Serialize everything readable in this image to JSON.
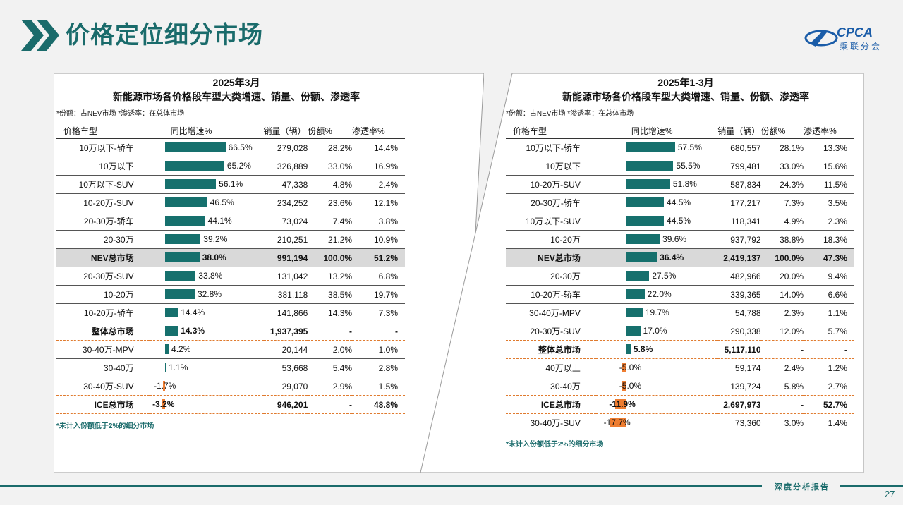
{
  "header": {
    "title": "价格定位细分市场",
    "logo_text": "CPCA",
    "logo_sub": "乘联分会"
  },
  "colors": {
    "accent": "#1a6b6b",
    "bar_positive": "#16706d",
    "bar_negative": "#ee7d31"
  },
  "columns": {
    "name": "价格车型",
    "growth": "同比增速%",
    "sales": "销量（辆）",
    "share": "份额%",
    "penetration": "渗透率%"
  },
  "footer": {
    "brand": "深度分析报告",
    "page": "27"
  },
  "chart_data": [
    {
      "type": "bar",
      "title": "2025年3月",
      "subtitle": "新能源市场各价格段车型大类增速、销量、份额、渗透率",
      "note": "*份额：占NEV市场   *渗透率：在总体市场",
      "footnote": "*未计入份额低于2%的细分市场",
      "max_abs": 66.5,
      "rows": [
        {
          "name": "10万以下-轿车",
          "growth": 66.5,
          "growth_label": "66.5%",
          "sales": "279,028",
          "share": "28.2%",
          "penetration": "14.4%",
          "kind": "normal"
        },
        {
          "name": "10万以下",
          "growth": 65.2,
          "growth_label": "65.2%",
          "sales": "326,889",
          "share": "33.0%",
          "penetration": "16.9%",
          "kind": "normal"
        },
        {
          "name": "10万以下-SUV",
          "growth": 56.1,
          "growth_label": "56.1%",
          "sales": "47,338",
          "share": "4.8%",
          "penetration": "2.4%",
          "kind": "normal"
        },
        {
          "name": "10-20万-SUV",
          "growth": 46.5,
          "growth_label": "46.5%",
          "sales": "234,252",
          "share": "23.6%",
          "penetration": "12.1%",
          "kind": "normal"
        },
        {
          "name": "20-30万-轿车",
          "growth": 44.1,
          "growth_label": "44.1%",
          "sales": "73,024",
          "share": "7.4%",
          "penetration": "3.8%",
          "kind": "normal"
        },
        {
          "name": "20-30万",
          "growth": 39.2,
          "growth_label": "39.2%",
          "sales": "210,251",
          "share": "21.2%",
          "penetration": "10.9%",
          "kind": "normal"
        },
        {
          "name": "NEV总市场",
          "growth": 38.0,
          "growth_label": "38.0%",
          "sales": "991,194",
          "share": "100.0%",
          "penetration": "51.2%",
          "kind": "highlight"
        },
        {
          "name": "20-30万-SUV",
          "growth": 33.8,
          "growth_label": "33.8%",
          "sales": "131,042",
          "share": "13.2%",
          "penetration": "6.8%",
          "kind": "normal"
        },
        {
          "name": "10-20万",
          "growth": 32.8,
          "growth_label": "32.8%",
          "sales": "381,118",
          "share": "38.5%",
          "penetration": "19.7%",
          "kind": "normal"
        },
        {
          "name": "10-20万-轿车",
          "growth": 14.4,
          "growth_label": "14.4%",
          "sales": "141,866",
          "share": "14.3%",
          "penetration": "7.3%",
          "kind": "dash"
        },
        {
          "name": "整体总市场",
          "growth": 14.3,
          "growth_label": "14.3%",
          "sales": "1,937,395",
          "share": "-",
          "penetration": "-",
          "kind": "total-dash"
        },
        {
          "name": "30-40万-MPV",
          "growth": 4.2,
          "growth_label": "4.2%",
          "sales": "20,144",
          "share": "2.0%",
          "penetration": "1.0%",
          "kind": "normal"
        },
        {
          "name": "30-40万",
          "growth": 1.1,
          "growth_label": "1.1%",
          "sales": "53,668",
          "share": "5.4%",
          "penetration": "2.8%",
          "kind": "normal"
        },
        {
          "name": "30-40万-SUV",
          "growth": -1.7,
          "growth_label": "-1.7%",
          "sales": "29,070",
          "share": "2.9%",
          "penetration": "1.5%",
          "kind": "dash"
        },
        {
          "name": "ICE总市场",
          "growth": -3.2,
          "growth_label": "-3.2%",
          "sales": "946,201",
          "share": "-",
          "penetration": "48.8%",
          "kind": "total-dash"
        }
      ]
    },
    {
      "type": "bar",
      "title": "2025年1-3月",
      "subtitle": "新能源市场各价格段车型大类增速、销量、份额、渗透率",
      "note": "*份额：占NEV市场   *渗透率：在总体市场",
      "footnote": "*未计入份额低于2%的细分市场",
      "max_abs": 57.5,
      "rows": [
        {
          "name": "10万以下-轿车",
          "growth": 57.5,
          "growth_label": "57.5%",
          "sales": "680,557",
          "share": "28.1%",
          "penetration": "13.3%",
          "kind": "normal"
        },
        {
          "name": "10万以下",
          "growth": 55.5,
          "growth_label": "55.5%",
          "sales": "799,481",
          "share": "33.0%",
          "penetration": "15.6%",
          "kind": "normal"
        },
        {
          "name": "10-20万-SUV",
          "growth": 51.8,
          "growth_label": "51.8%",
          "sales": "587,834",
          "share": "24.3%",
          "penetration": "11.5%",
          "kind": "normal"
        },
        {
          "name": "20-30万-轿车",
          "growth": 44.5,
          "growth_label": "44.5%",
          "sales": "177,217",
          "share": "7.3%",
          "penetration": "3.5%",
          "kind": "normal"
        },
        {
          "name": "10万以下-SUV",
          "growth": 44.5,
          "growth_label": "44.5%",
          "sales": "118,341",
          "share": "4.9%",
          "penetration": "2.3%",
          "kind": "normal"
        },
        {
          "name": "10-20万",
          "growth": 39.6,
          "growth_label": "39.6%",
          "sales": "937,792",
          "share": "38.8%",
          "penetration": "18.3%",
          "kind": "normal"
        },
        {
          "name": "NEV总市场",
          "growth": 36.4,
          "growth_label": "36.4%",
          "sales": "2,419,137",
          "share": "100.0%",
          "penetration": "47.3%",
          "kind": "highlight"
        },
        {
          "name": "20-30万",
          "growth": 27.5,
          "growth_label": "27.5%",
          "sales": "482,966",
          "share": "20.0%",
          "penetration": "9.4%",
          "kind": "normal"
        },
        {
          "name": "10-20万-轿车",
          "growth": 22.0,
          "growth_label": "22.0%",
          "sales": "339,365",
          "share": "14.0%",
          "penetration": "6.6%",
          "kind": "normal"
        },
        {
          "name": "30-40万-MPV",
          "growth": 19.7,
          "growth_label": "19.7%",
          "sales": "54,788",
          "share": "2.3%",
          "penetration": "1.1%",
          "kind": "normal"
        },
        {
          "name": "20-30万-SUV",
          "growth": 17.0,
          "growth_label": "17.0%",
          "sales": "290,338",
          "share": "12.0%",
          "penetration": "5.7%",
          "kind": "dash"
        },
        {
          "name": "整体总市场",
          "growth": 5.8,
          "growth_label": "5.8%",
          "sales": "5,117,110",
          "share": "-",
          "penetration": "-",
          "kind": "total-dash"
        },
        {
          "name": "40万以上",
          "growth": -5.0,
          "growth_label": "-5.0%",
          "sales": "59,174",
          "share": "2.4%",
          "penetration": "1.2%",
          "kind": "normal"
        },
        {
          "name": "30-40万",
          "growth": -5.0,
          "growth_label": "-5.0%",
          "sales": "139,724",
          "share": "5.8%",
          "penetration": "2.7%",
          "kind": "dash"
        },
        {
          "name": "ICE总市场",
          "growth": -11.9,
          "growth_label": "-11.9%",
          "sales": "2,697,973",
          "share": "-",
          "penetration": "52.7%",
          "kind": "total-dash"
        },
        {
          "name": "30-40万-SUV",
          "growth": -17.7,
          "growth_label": "-17.7%",
          "sales": "73,360",
          "share": "3.0%",
          "penetration": "1.4%",
          "kind": "normal"
        }
      ]
    }
  ]
}
